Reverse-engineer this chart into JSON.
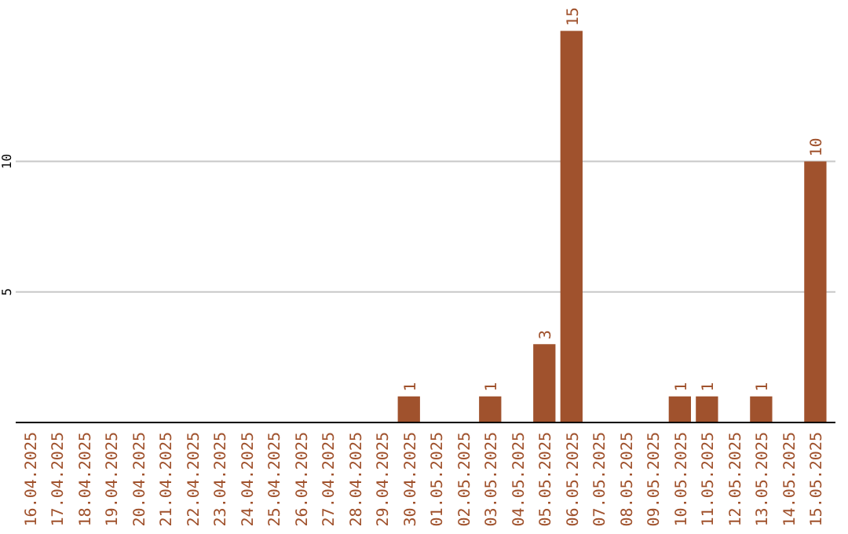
{
  "chart_data": {
    "type": "bar",
    "categories": [
      "16.04.2025",
      "17.04.2025",
      "18.04.2025",
      "19.04.2025",
      "20.04.2025",
      "21.04.2025",
      "22.04.2025",
      "23.04.2025",
      "24.04.2025",
      "25.04.2025",
      "26.04.2025",
      "27.04.2025",
      "28.04.2025",
      "29.04.2025",
      "30.04.2025",
      "01.05.2025",
      "02.05.2025",
      "03.05.2025",
      "04.05.2025",
      "05.05.2025",
      "06.05.2025",
      "07.05.2025",
      "08.05.2025",
      "09.05.2025",
      "10.05.2025",
      "11.05.2025",
      "12.05.2025",
      "13.05.2025",
      "14.05.2025",
      "15.05.2025"
    ],
    "values": [
      0,
      0,
      0,
      0,
      0,
      0,
      0,
      0,
      0,
      0,
      0,
      0,
      0,
      0,
      1,
      0,
      0,
      1,
      0,
      3,
      15,
      0,
      0,
      0,
      1,
      1,
      0,
      1,
      0,
      10
    ],
    "value_labels": [
      null,
      null,
      null,
      null,
      null,
      null,
      null,
      null,
      null,
      null,
      null,
      null,
      null,
      null,
      "1",
      null,
      null,
      "1",
      null,
      "3",
      "15",
      null,
      null,
      null,
      "1",
      "1",
      null,
      "1",
      null,
      "10"
    ],
    "color": "#a0522d",
    "ylim": [
      0,
      15.1
    ],
    "yticks": [
      5,
      10
    ],
    "grid": "y"
  }
}
